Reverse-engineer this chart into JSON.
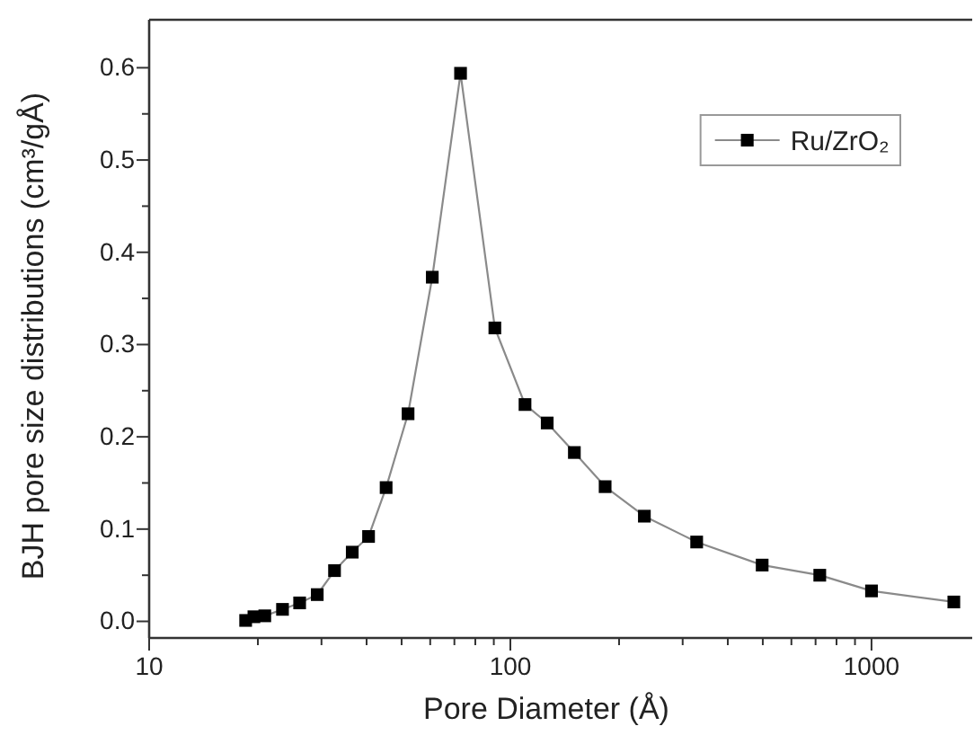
{
  "chart_data": {
    "type": "line",
    "xlabel": "Pore Diameter (Å)",
    "ylabel": "BJH pore size distributions (cm³/gÅ)",
    "log": "x",
    "marker": "square",
    "line_style": "solid",
    "legend": "top right",
    "grid": false,
    "xlim": [
      10,
      1900
    ],
    "ylim": [
      -0.018,
      0.652
    ],
    "xticks": [
      10,
      {
        "value": 20,
        "label": null
      },
      {
        "value": 30,
        "label": null
      },
      {
        "value": 40,
        "label": null
      },
      {
        "value": 50,
        "label": null
      },
      {
        "value": 60,
        "label": null
      },
      {
        "value": 70,
        "label": null
      },
      {
        "value": 80,
        "label": null
      },
      {
        "value": 90,
        "label": null
      },
      100,
      {
        "value": 200,
        "label": null
      },
      {
        "value": 300,
        "label": null
      },
      {
        "value": 400,
        "label": null
      },
      {
        "value": 500,
        "label": null
      },
      {
        "value": 600,
        "label": null
      },
      {
        "value": 700,
        "label": null
      },
      {
        "value": 800,
        "label": null
      },
      {
        "value": 900,
        "label": null
      },
      1000
    ],
    "yticks": [
      {
        "value": 0,
        "label": "0.0"
      },
      {
        "value": 0.05,
        "label": null
      },
      0.1,
      {
        "value": 0.15,
        "label": null
      },
      0.2,
      {
        "value": 0.25,
        "label": null
      },
      0.3,
      {
        "value": 0.35,
        "label": null
      },
      0.4,
      {
        "value": 0.45,
        "label": null
      },
      0.5,
      {
        "value": 0.55,
        "label": null
      },
      0.6
    ],
    "x": [
      18.5,
      19.5,
      20.9,
      23.4,
      26.1,
      29.2,
      32.6,
      36.5,
      40.5,
      45.3,
      52.1,
      60.8,
      72.8,
      90.6,
      109.8,
      126.5,
      150.4,
      183,
      235,
      328,
      498,
      719,
      1000,
      1690
    ],
    "series": [
      {
        "name": "Ru/ZrO₂",
        "color": "#000000",
        "values": [
          0.001,
          0.005,
          0.006,
          0.013,
          0.02,
          0.029,
          0.055,
          0.075,
          0.092,
          0.145,
          0.225,
          0.373,
          0.594,
          0.318,
          0.235,
          0.215,
          0.183,
          0.146,
          0.114,
          0.086,
          0.061,
          0.05,
          0.033,
          0.021
        ]
      }
    ]
  }
}
